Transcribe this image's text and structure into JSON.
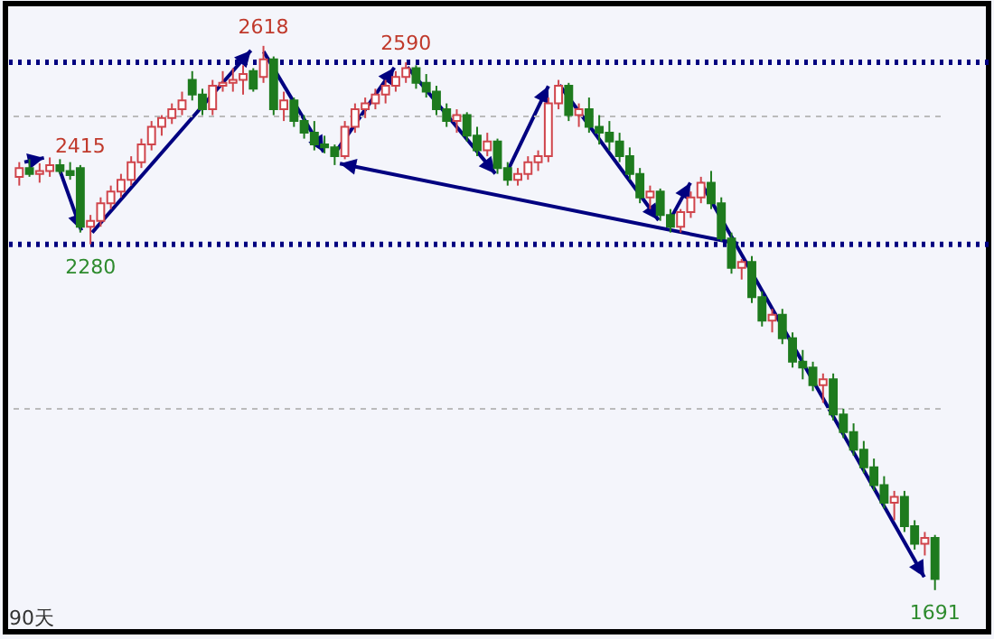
{
  "chart_data": {
    "type": "candlestick",
    "categories": [
      null,
      null,
      null,
      null,
      null,
      null,
      null,
      null,
      null,
      null,
      null,
      null,
      null,
      null,
      null,
      null,
      null,
      null,
      null,
      null,
      null,
      null,
      null,
      null,
      null,
      null,
      null,
      null,
      null,
      null,
      null,
      null,
      null,
      null,
      null,
      null,
      null,
      null,
      null,
      null,
      null,
      null,
      null,
      null,
      null,
      null,
      null,
      null,
      null,
      null,
      null,
      null,
      null,
      null,
      null,
      null,
      null,
      null,
      null,
      null,
      null,
      null,
      null,
      null,
      null,
      null,
      null,
      null,
      null,
      null,
      null,
      null,
      null,
      null,
      null,
      null,
      null,
      null,
      null,
      null,
      null,
      null,
      null,
      null,
      null,
      null,
      null,
      null,
      null,
      null,
      null
    ],
    "ohlc": [
      [
        2395,
        2420,
        2380,
        2410
      ],
      [
        2410,
        2425,
        2395,
        2400
      ],
      [
        2400,
        2418,
        2385,
        2405
      ],
      [
        2405,
        2428,
        2395,
        2415
      ],
      [
        2415,
        2425,
        2400,
        2405
      ],
      [
        2405,
        2420,
        2390,
        2398
      ],
      [
        2410,
        2415,
        2300,
        2310
      ],
      [
        2310,
        2330,
        2280,
        2320
      ],
      [
        2320,
        2360,
        2310,
        2350
      ],
      [
        2350,
        2380,
        2340,
        2370
      ],
      [
        2370,
        2400,
        2360,
        2390
      ],
      [
        2390,
        2430,
        2380,
        2420
      ],
      [
        2420,
        2460,
        2410,
        2450
      ],
      [
        2450,
        2490,
        2440,
        2480
      ],
      [
        2480,
        2500,
        2465,
        2495
      ],
      [
        2495,
        2520,
        2485,
        2510
      ],
      [
        2510,
        2540,
        2500,
        2525
      ],
      [
        2560,
        2575,
        2525,
        2535
      ],
      [
        2535,
        2545,
        2500,
        2510
      ],
      [
        2510,
        2560,
        2500,
        2550
      ],
      [
        2550,
        2575,
        2540,
        2555
      ],
      [
        2555,
        2580,
        2540,
        2560
      ],
      [
        2560,
        2585,
        2535,
        2570
      ],
      [
        2575,
        2580,
        2540,
        2545
      ],
      [
        2565,
        2618,
        2555,
        2595
      ],
      [
        2595,
        2600,
        2500,
        2510
      ],
      [
        2510,
        2540,
        2490,
        2525
      ],
      [
        2525,
        2530,
        2480,
        2490
      ],
      [
        2490,
        2500,
        2460,
        2470
      ],
      [
        2470,
        2490,
        2440,
        2450
      ],
      [
        2450,
        2465,
        2435,
        2445
      ],
      [
        2445,
        2450,
        2415,
        2430
      ],
      [
        2430,
        2490,
        2425,
        2480
      ],
      [
        2480,
        2520,
        2470,
        2510
      ],
      [
        2510,
        2530,
        2495,
        2520
      ],
      [
        2520,
        2545,
        2510,
        2535
      ],
      [
        2535,
        2560,
        2520,
        2550
      ],
      [
        2550,
        2575,
        2540,
        2565
      ],
      [
        2565,
        2590,
        2555,
        2580
      ],
      [
        2580,
        2585,
        2545,
        2555
      ],
      [
        2555,
        2570,
        2530,
        2540
      ],
      [
        2540,
        2550,
        2500,
        2510
      ],
      [
        2510,
        2520,
        2480,
        2490
      ],
      [
        2490,
        2510,
        2470,
        2500
      ],
      [
        2500,
        2505,
        2455,
        2465
      ],
      [
        2465,
        2480,
        2430,
        2440
      ],
      [
        2440,
        2470,
        2430,
        2455
      ],
      [
        2455,
        2460,
        2400,
        2410
      ],
      [
        2410,
        2420,
        2380,
        2390
      ],
      [
        2390,
        2410,
        2380,
        2400
      ],
      [
        2400,
        2430,
        2390,
        2420
      ],
      [
        2420,
        2440,
        2405,
        2430
      ],
      [
        2430,
        2530,
        2420,
        2520
      ],
      [
        2520,
        2560,
        2510,
        2550
      ],
      [
        2550,
        2555,
        2490,
        2500
      ],
      [
        2500,
        2520,
        2480,
        2510
      ],
      [
        2510,
        2530,
        2470,
        2480
      ],
      [
        2480,
        2500,
        2450,
        2470
      ],
      [
        2470,
        2490,
        2440,
        2455
      ],
      [
        2455,
        2470,
        2420,
        2430
      ],
      [
        2430,
        2445,
        2390,
        2400
      ],
      [
        2400,
        2410,
        2350,
        2360
      ],
      [
        2360,
        2380,
        2340,
        2370
      ],
      [
        2370,
        2375,
        2320,
        2330
      ],
      [
        2330,
        2340,
        2300,
        2310
      ],
      [
        2310,
        2340,
        2300,
        2335
      ],
      [
        2335,
        2370,
        2325,
        2360
      ],
      [
        2360,
        2395,
        2350,
        2385
      ],
      [
        2385,
        2405,
        2340,
        2350
      ],
      [
        2350,
        2360,
        2285,
        2290
      ],
      [
        2290,
        2300,
        2230,
        2240
      ],
      [
        2240,
        2255,
        2220,
        2250
      ],
      [
        2250,
        2260,
        2180,
        2190
      ],
      [
        2190,
        2200,
        2140,
        2150
      ],
      [
        2150,
        2170,
        2130,
        2160
      ],
      [
        2160,
        2170,
        2110,
        2120
      ],
      [
        2120,
        2130,
        2070,
        2080
      ],
      [
        2080,
        2100,
        2050,
        2070
      ],
      [
        2070,
        2080,
        2030,
        2040
      ],
      [
        2040,
        2060,
        2010,
        2050
      ],
      [
        2050,
        2060,
        1980,
        1990
      ],
      [
        1990,
        2000,
        1950,
        1960
      ],
      [
        1960,
        1975,
        1920,
        1930
      ],
      [
        1930,
        1945,
        1890,
        1900
      ],
      [
        1900,
        1915,
        1860,
        1870
      ],
      [
        1870,
        1885,
        1830,
        1840
      ],
      [
        1840,
        1860,
        1810,
        1850
      ],
      [
        1850,
        1860,
        1790,
        1800
      ],
      [
        1800,
        1810,
        1760,
        1770
      ],
      [
        1770,
        1790,
        1750,
        1780
      ],
      [
        1780,
        1785,
        1691,
        1710
      ]
    ],
    "ylim": [
      1620,
      2690
    ],
    "yticks": [
      {
        "value": 2000,
        "label": null
      },
      {
        "value": 2500,
        "label": null
      }
    ],
    "grid": "y",
    "ref_lines": [
      {
        "axis": "y",
        "value": 2590,
        "color": "#000080",
        "line_style": "dotted"
      },
      {
        "axis": "y",
        "value": 2280,
        "color": "#000080",
        "line_style": "dotted"
      }
    ],
    "annotations": [
      {
        "text": "2618",
        "y": 2618
      },
      {
        "text": "2590",
        "y": 2590
      },
      {
        "text": "2415",
        "y": 2415
      },
      {
        "text": "2280",
        "y": 2280
      },
      {
        "text": "1691",
        "y": 1691
      },
      "90天"
    ]
  }
}
